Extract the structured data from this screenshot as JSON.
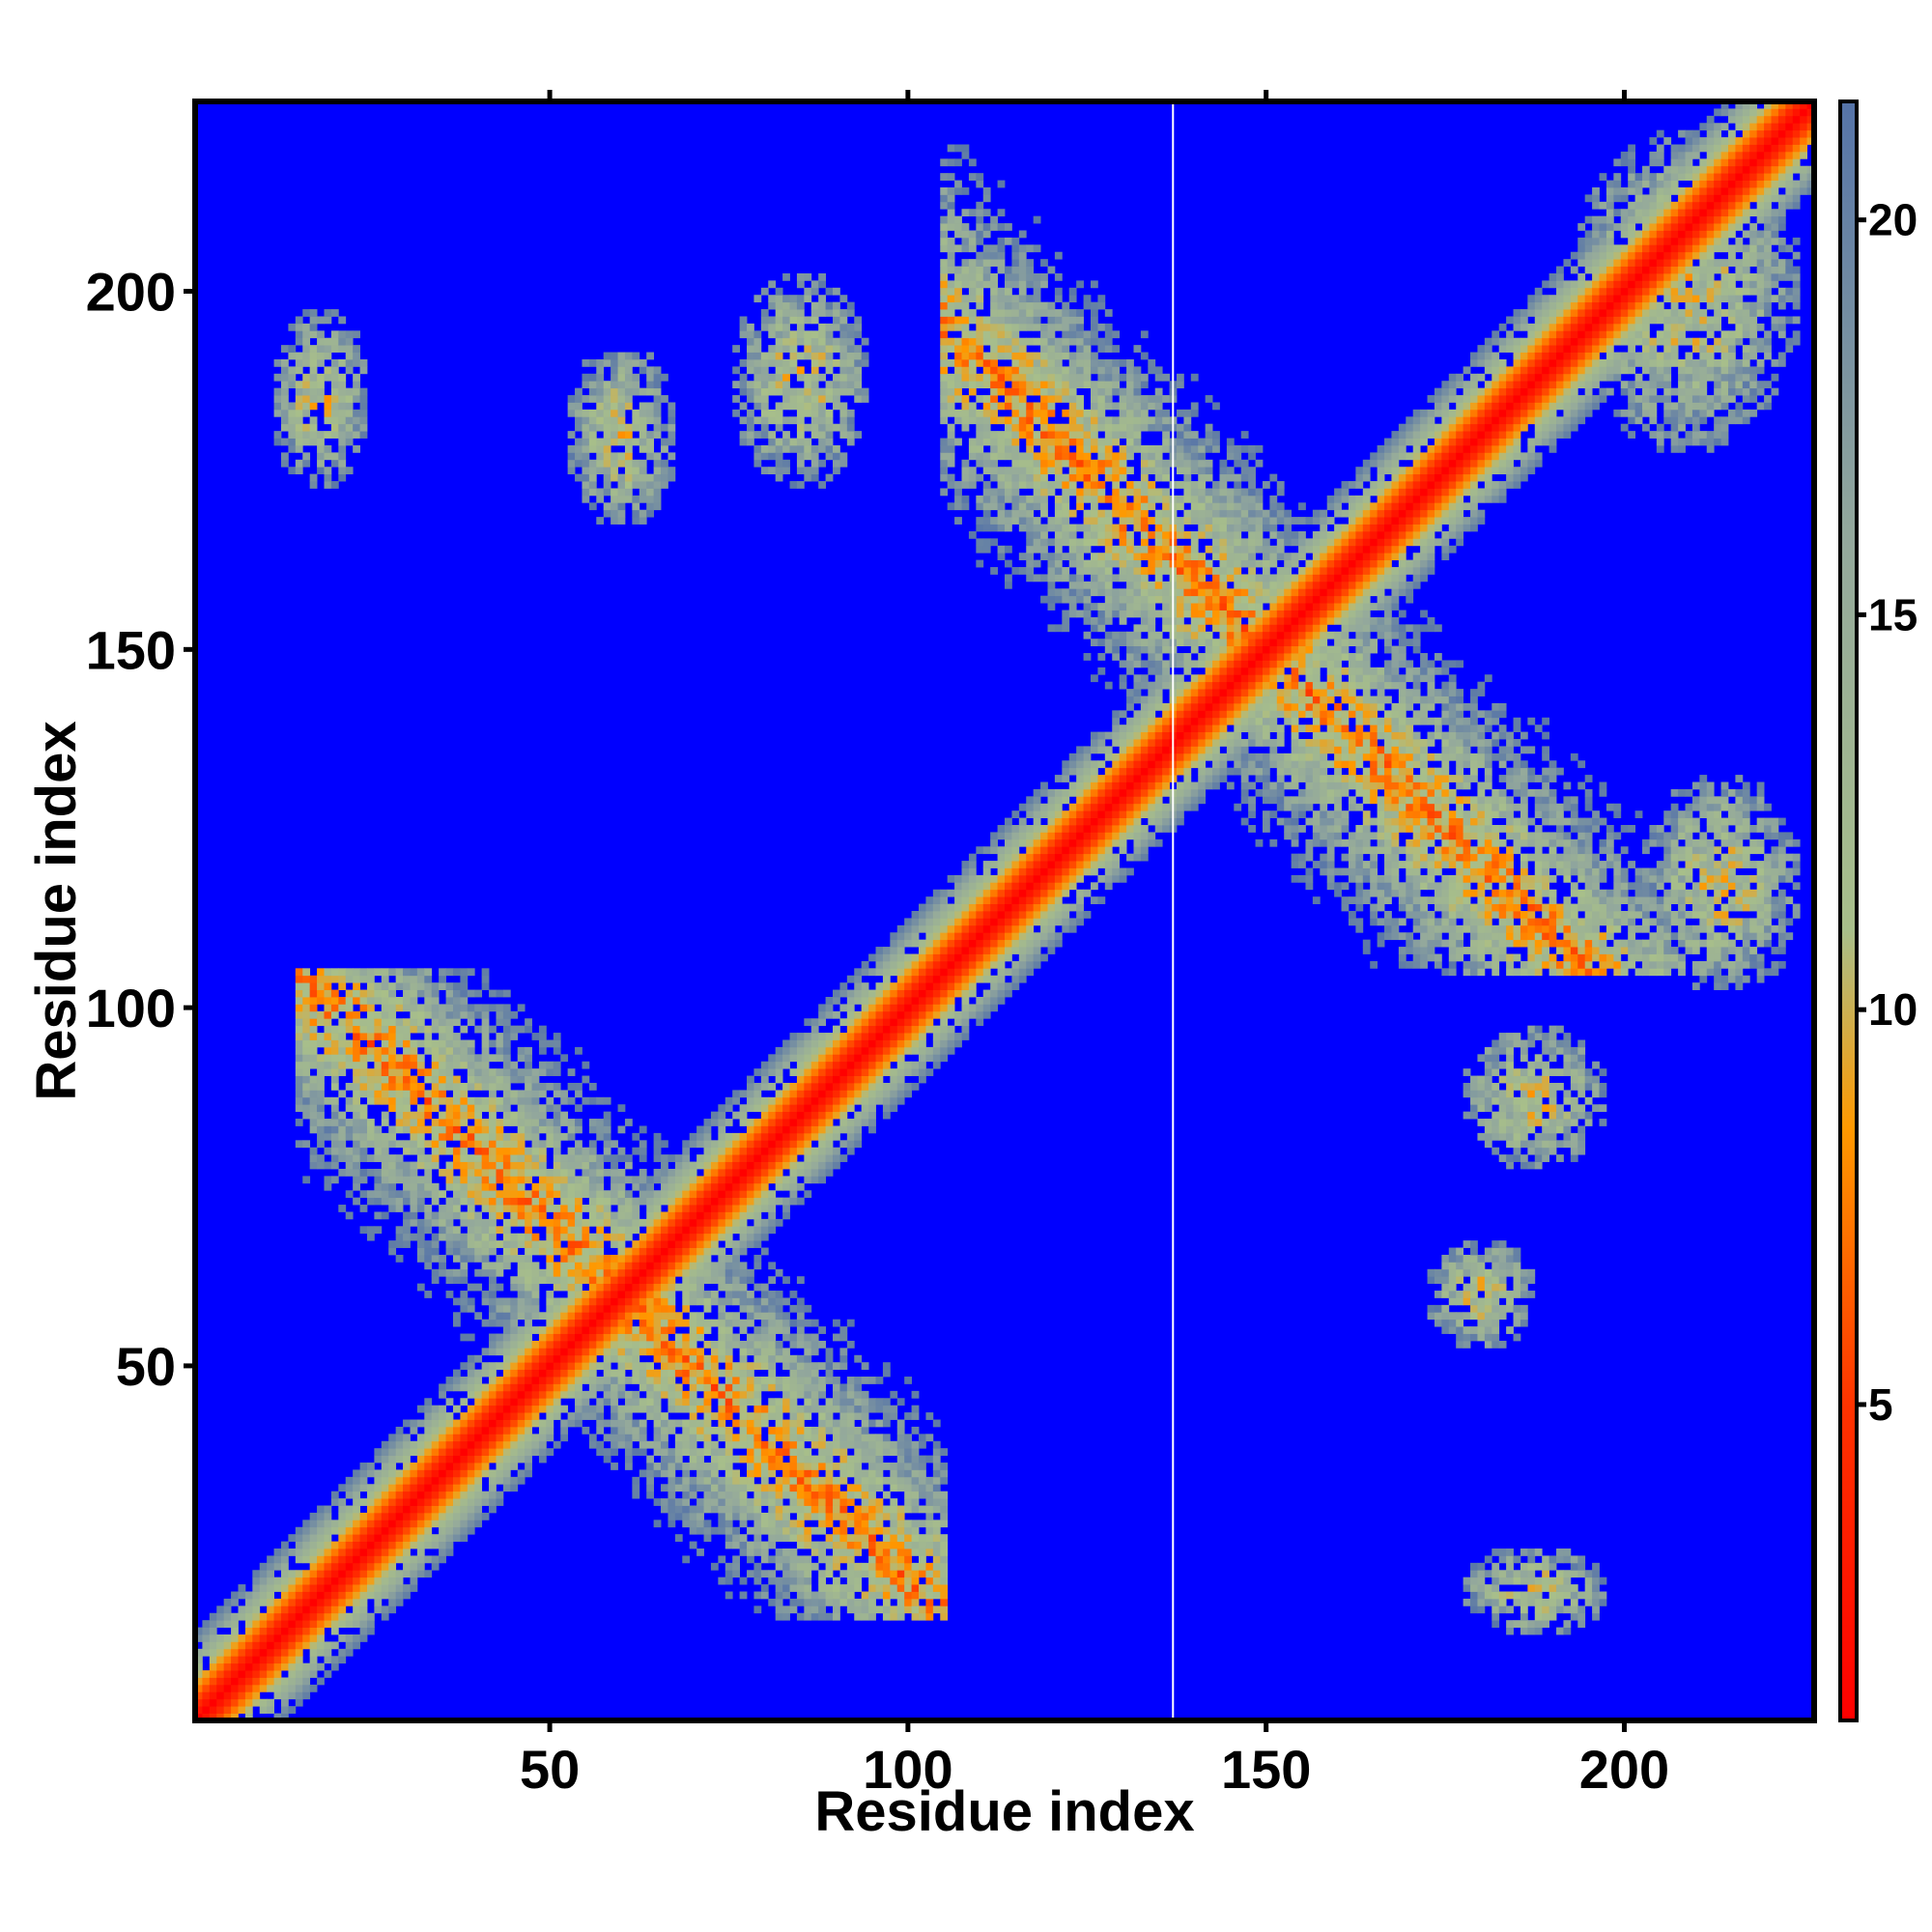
{
  "chart_data": {
    "type": "heatmap",
    "title": "",
    "xlabel": "Residue index",
    "ylabel": "Residue index",
    "xlim": [
      1,
      226
    ],
    "ylim": [
      1,
      226
    ],
    "x_ticks": [
      50,
      100,
      150,
      200
    ],
    "y_ticks": [
      50,
      100,
      150,
      200
    ],
    "x_tick_labels": [
      "50",
      "100",
      "150",
      "200"
    ],
    "y_tick_labels": [
      "50",
      "100",
      "150",
      "200"
    ],
    "gap_column": 137,
    "colorbar": {
      "range": [
        1,
        21.5
      ],
      "ticks": [
        5,
        10,
        15,
        20
      ],
      "tick_labels": [
        "5",
        "10",
        "15",
        "20"
      ],
      "stops": [
        {
          "value": 1,
          "color": "#ff0000"
        },
        {
          "value": 5,
          "color": "#ff3300"
        },
        {
          "value": 8.5,
          "color": "#ff9900"
        },
        {
          "value": 11,
          "color": "#a8bf8a"
        },
        {
          "value": 16,
          "color": "#93a89c"
        },
        {
          "value": 21.5,
          "color": "#5573a8"
        }
      ],
      "background_color": "#0000ff"
    },
    "features": [
      {
        "kind": "diagonal_band",
        "from": 1,
        "to": 226,
        "description": "self-contact diagonal (red core, orange/green halo)"
      },
      {
        "kind": "antidiagonal_block",
        "center": [
          150,
          150
        ],
        "extent": [
          105,
          222
        ]
      },
      {
        "kind": "antidiagonal_block",
        "center": [
          60,
          60
        ],
        "extent": [
          15,
          105
        ]
      },
      {
        "kind": "block",
        "x": [
          14,
          22
        ],
        "y": [
          175,
          195
        ]
      },
      {
        "kind": "block",
        "x": [
          55,
          65
        ],
        "y": [
          170,
          190
        ]
      },
      {
        "kind": "block",
        "x": [
          78,
          92
        ],
        "y": [
          175,
          200
        ]
      },
      {
        "kind": "block",
        "x": [
          180,
          195
        ],
        "y": [
          80,
          95
        ]
      },
      {
        "kind": "block",
        "x": [
          175,
          185
        ],
        "y": [
          55,
          65
        ]
      },
      {
        "kind": "block",
        "x": [
          180,
          195
        ],
        "y": [
          15,
          22
        ]
      },
      {
        "kind": "block",
        "x": [
          205,
          222
        ],
        "y": [
          105,
          130
        ]
      },
      {
        "kind": "block",
        "x": [
          195,
          222
        ],
        "y": [
          180,
          220
        ]
      }
    ]
  }
}
